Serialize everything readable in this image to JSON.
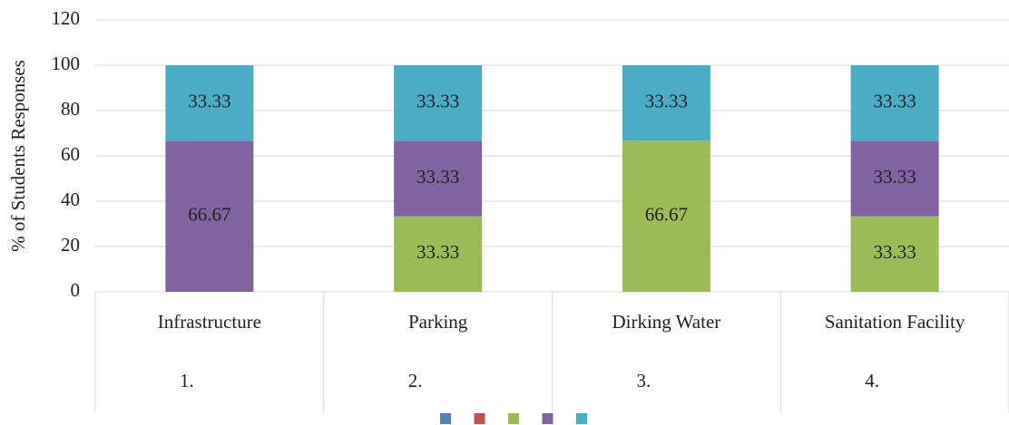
{
  "chart_data": {
    "type": "stacked_bar",
    "y_label": "% of Students Responses",
    "categories": [
      "Infrastructure",
      "Parking",
      "Dirking Water",
      "Sanitation Facility"
    ],
    "category_numbers": [
      "1.",
      "2.",
      "3.",
      "4."
    ],
    "series": [
      {
        "color": "#4f81bd",
        "values": [
          0,
          0,
          0,
          0
        ]
      },
      {
        "color": "#c0504d",
        "values": [
          0,
          0,
          0,
          0
        ]
      },
      {
        "color": "#9bbb59",
        "values": [
          0,
          33.33,
          66.67,
          33.33
        ]
      },
      {
        "color": "#8064a2",
        "values": [
          66.67,
          33.33,
          0,
          33.33
        ]
      },
      {
        "color": "#4bacc6",
        "values": [
          33.33,
          33.33,
          33.33,
          33.33
        ]
      }
    ],
    "ylim": [
      0,
      120
    ],
    "yticks": [
      0,
      20,
      40,
      60,
      80,
      100,
      120
    ],
    "grid": true,
    "legend": "bottom"
  }
}
